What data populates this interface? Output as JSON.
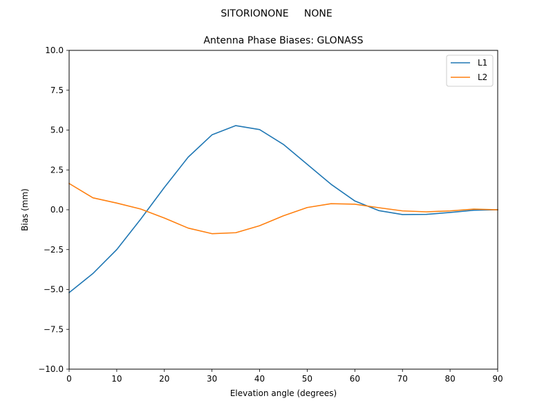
{
  "chart_data": {
    "type": "line",
    "suptitle": "SITORIONONE     NONE",
    "title": "Antenna Phase Biases: GLONASS",
    "xlabel": "Elevation angle (degrees)",
    "ylabel": "Bias (mm)",
    "xlim": [
      0,
      90
    ],
    "ylim": [
      -10,
      10
    ],
    "xticks": [
      0,
      10,
      20,
      30,
      40,
      50,
      60,
      70,
      80,
      90
    ],
    "yticks": [
      -10.0,
      -7.5,
      -5.0,
      -2.5,
      0.0,
      2.5,
      5.0,
      7.5,
      10.0
    ],
    "xtick_labels": [
      "0",
      "10",
      "20",
      "30",
      "40",
      "50",
      "60",
      "70",
      "80",
      "90"
    ],
    "ytick_labels": [
      "−10.0",
      "−7.5",
      "−5.0",
      "−2.5",
      "0.0",
      "2.5",
      "5.0",
      "7.5",
      "10.0"
    ],
    "grid": false,
    "legend_position": "top-right",
    "x": [
      0,
      5,
      10,
      15,
      20,
      25,
      30,
      35,
      40,
      45,
      50,
      55,
      60,
      65,
      70,
      75,
      80,
      85,
      90
    ],
    "series": [
      {
        "name": "L1",
        "color": "#1f77b4",
        "values": [
          -5.2,
          -4.0,
          -2.5,
          -0.6,
          1.4,
          3.3,
          4.7,
          5.28,
          5.03,
          4.1,
          2.85,
          1.6,
          0.55,
          -0.05,
          -0.3,
          -0.29,
          -0.17,
          -0.03,
          0.0
        ]
      },
      {
        "name": "L2",
        "color": "#ff7f0e",
        "values": [
          1.65,
          0.75,
          0.42,
          0.05,
          -0.52,
          -1.15,
          -1.5,
          -1.44,
          -1.0,
          -0.38,
          0.14,
          0.38,
          0.35,
          0.13,
          -0.07,
          -0.13,
          -0.07,
          0.04,
          0.0
        ]
      }
    ]
  }
}
